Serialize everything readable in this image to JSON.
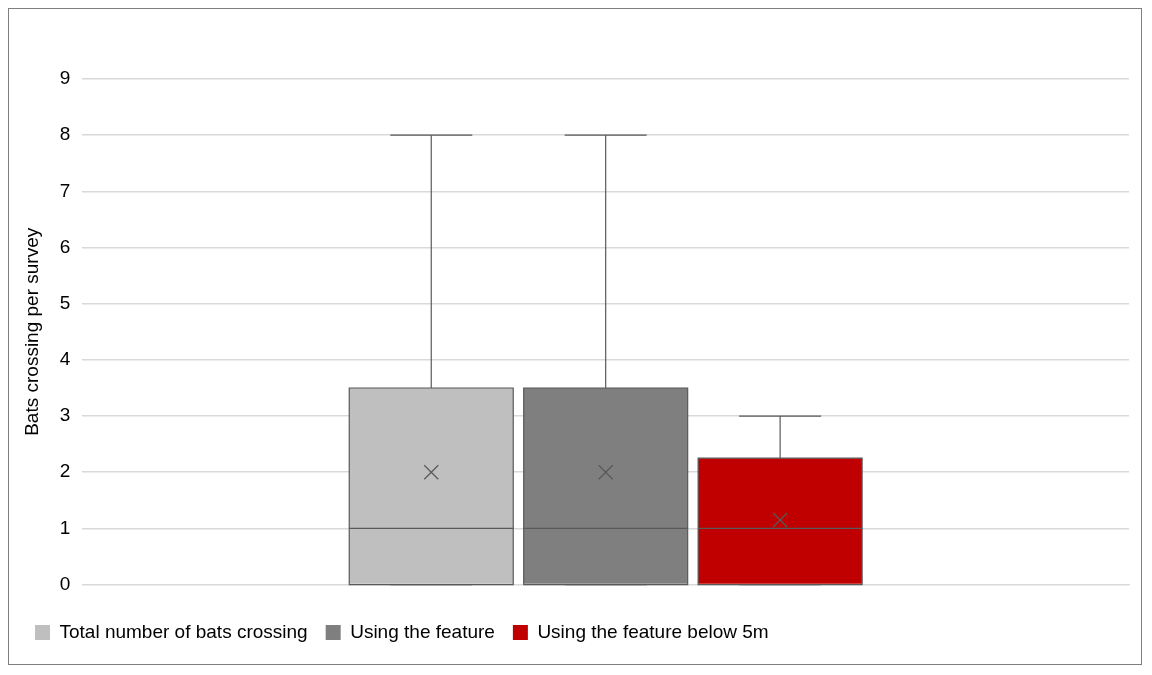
{
  "chart_data": {
    "type": "box",
    "ylabel": "Bats crossing per survey",
    "categories": [
      null
    ],
    "ylim": [
      0,
      9
    ],
    "yticks": [
      0,
      1,
      2,
      3,
      4,
      5,
      6,
      7,
      8,
      9
    ],
    "grid": "y",
    "legend": "bottom",
    "series": [
      {
        "name": "Total number of bats crossing",
        "color": "#bfbfbf",
        "boxes": [
          {
            "low": 0,
            "q1": 0,
            "median": 1,
            "q3": 3.5,
            "high": 8,
            "mean": 2
          }
        ]
      },
      {
        "name": "Using the feature",
        "color": "#7f7f7f",
        "boxes": [
          {
            "low": 0,
            "q1": 0,
            "median": 1,
            "q3": 3.5,
            "high": 8,
            "mean": 2
          }
        ]
      },
      {
        "name": "Using the feature below 5m",
        "color": "#c00000",
        "boxes": [
          {
            "low": 0,
            "q1": 0,
            "median": 1,
            "q3": 2.25,
            "high": 3,
            "mean": 1.15
          }
        ]
      }
    ]
  }
}
